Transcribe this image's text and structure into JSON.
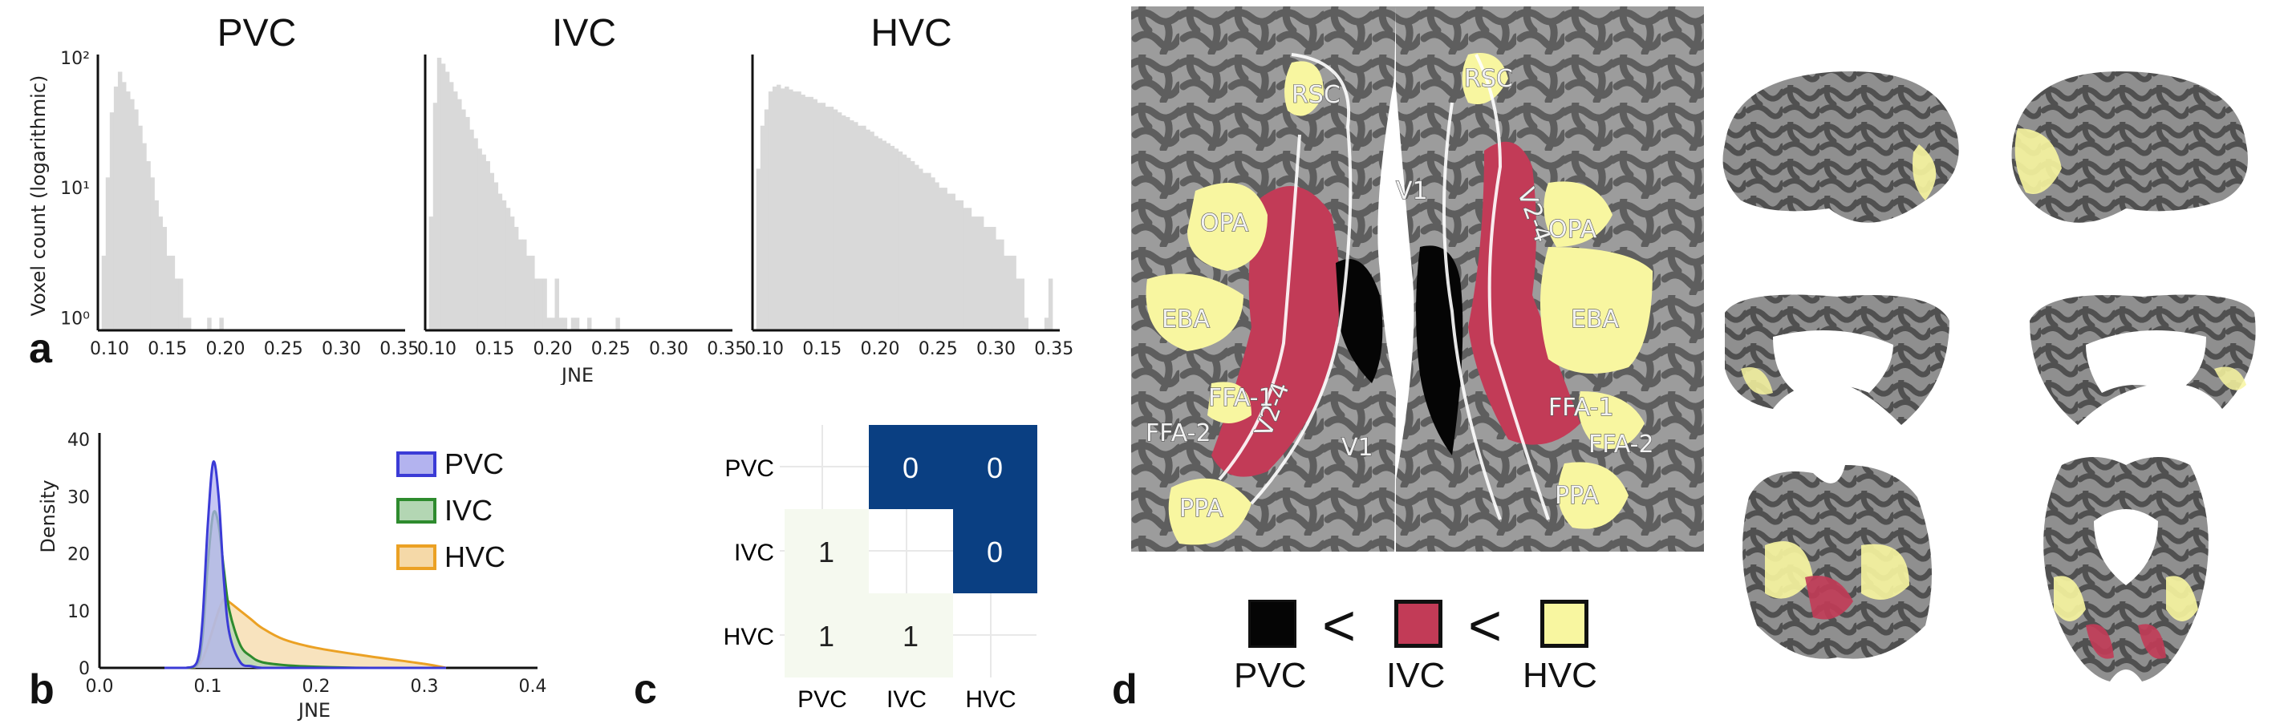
{
  "panel_letters": {
    "a": "a",
    "b": "b",
    "c": "c",
    "d": "d"
  },
  "panel_a": {
    "titles": [
      "PVC",
      "IVC",
      "HVC"
    ],
    "ylabel": "Voxel count (logarithmic)",
    "yticks": [
      "10²",
      "10¹",
      "10⁰"
    ],
    "xticks": [
      "0.10",
      "0.15",
      "0.20",
      "0.25",
      "0.30",
      "0.35"
    ],
    "xlabel": "JNE",
    "bar_color": "#d9d9d9"
  },
  "chart_data": [
    {
      "type": "bar",
      "title": "PVC",
      "xlabel": "JNE",
      "ylabel": "Voxel count (logarithmic)",
      "yscale": "log",
      "ylim": [
        0.8,
        100
      ],
      "xlim": [
        0.09,
        0.355
      ],
      "bin_width": 0.0035,
      "x": [
        0.095,
        0.0985,
        0.102,
        0.1055,
        0.109,
        0.1125,
        0.116,
        0.1195,
        0.123,
        0.1265,
        0.13,
        0.1335,
        0.137,
        0.1405,
        0.144,
        0.1475,
        0.151,
        0.1545,
        0.158,
        0.1615,
        0.165,
        0.1685,
        0.172,
        0.1755,
        0.179,
        0.1825,
        0.186,
        0.1895,
        0.193,
        0.1965,
        0.2
      ],
      "values": [
        3,
        12,
        38,
        60,
        78,
        65,
        55,
        48,
        40,
        30,
        22,
        16,
        12,
        8,
        6,
        5,
        3,
        3,
        2,
        2,
        1,
        1,
        0,
        0,
        0,
        0,
        1,
        0,
        0,
        1,
        0
      ]
    },
    {
      "type": "bar",
      "title": "IVC",
      "xlabel": "JNE",
      "yscale": "log",
      "ylim": [
        0.8,
        100
      ],
      "xlim": [
        0.09,
        0.355
      ],
      "bin_width": 0.0035,
      "x": [
        0.095,
        0.0985,
        0.102,
        0.1055,
        0.109,
        0.1125,
        0.116,
        0.1195,
        0.123,
        0.1265,
        0.13,
        0.1335,
        0.137,
        0.1405,
        0.144,
        0.1475,
        0.151,
        0.1545,
        0.158,
        0.1615,
        0.165,
        0.1685,
        0.172,
        0.1755,
        0.179,
        0.1825,
        0.186,
        0.1895,
        0.193,
        0.1965,
        0.2,
        0.2035,
        0.207,
        0.2105,
        0.214,
        0.2175,
        0.221,
        0.2245,
        0.228,
        0.2315,
        0.235,
        0.2385,
        0.242,
        0.2455,
        0.249,
        0.2525,
        0.256,
        0.2595
      ],
      "values": [
        6,
        45,
        100,
        90,
        78,
        65,
        55,
        48,
        40,
        35,
        28,
        24,
        20,
        18,
        16,
        13,
        11,
        9,
        8,
        7,
        6,
        5,
        4,
        4,
        3,
        3,
        2,
        2,
        2,
        1,
        1,
        2,
        1,
        1,
        0,
        1,
        1,
        0,
        0,
        1,
        0,
        0,
        0,
        0,
        0,
        0,
        1,
        0
      ]
    },
    {
      "type": "bar",
      "title": "HVC",
      "xlabel": "JNE",
      "yscale": "log",
      "ylim": [
        0.8,
        100
      ],
      "xlim": [
        0.09,
        0.355
      ],
      "bin_width": 0.0035,
      "x": [
        0.095,
        0.0985,
        0.102,
        0.1055,
        0.109,
        0.1125,
        0.116,
        0.1195,
        0.123,
        0.1265,
        0.13,
        0.1335,
        0.137,
        0.1405,
        0.144,
        0.1475,
        0.151,
        0.1545,
        0.158,
        0.1615,
        0.165,
        0.1685,
        0.172,
        0.1755,
        0.179,
        0.1825,
        0.186,
        0.1895,
        0.193,
        0.1965,
        0.2,
        0.2035,
        0.207,
        0.2105,
        0.214,
        0.2175,
        0.221,
        0.2245,
        0.228,
        0.2315,
        0.235,
        0.2385,
        0.242,
        0.2455,
        0.249,
        0.2525,
        0.256,
        0.2595,
        0.263,
        0.2665,
        0.27,
        0.2735,
        0.277,
        0.2805,
        0.284,
        0.2875,
        0.291,
        0.2945,
        0.298,
        0.3015,
        0.305,
        0.3085,
        0.312,
        0.3155,
        0.319,
        0.3225,
        0.326,
        0.3295,
        0.333,
        0.3365,
        0.34,
        0.3435,
        0.347
      ],
      "values": [
        14,
        30,
        40,
        55,
        60,
        62,
        58,
        60,
        57,
        55,
        55,
        52,
        50,
        50,
        48,
        45,
        45,
        42,
        42,
        40,
        38,
        36,
        35,
        33,
        32,
        30,
        30,
        28,
        27,
        25,
        24,
        23,
        22,
        21,
        20,
        19,
        18,
        17,
        16,
        15,
        14,
        13,
        13,
        12,
        11,
        10,
        10,
        9,
        9,
        8,
        8,
        7,
        7,
        6,
        6,
        6,
        5,
        5,
        5,
        4,
        4,
        3,
        3,
        3,
        2,
        2,
        1,
        0,
        0,
        0,
        0,
        1,
        2
      ]
    },
    {
      "type": "area",
      "title": "",
      "xlabel": "JNE",
      "ylabel": "Density",
      "xlim": [
        0.0,
        0.4
      ],
      "ylim": [
        0,
        40
      ],
      "xticks": [
        "0.0",
        "0.1",
        "0.2",
        "0.3",
        "0.4"
      ],
      "yticks": [
        "0",
        "10",
        "20",
        "30",
        "40"
      ],
      "x": [
        0.06,
        0.08,
        0.09,
        0.095,
        0.1,
        0.105,
        0.11,
        0.115,
        0.12,
        0.13,
        0.14,
        0.15,
        0.17,
        0.2,
        0.25,
        0.3,
        0.32
      ],
      "series": [
        {
          "name": "PVC",
          "values": [
            0,
            0,
            1,
            8,
            25,
            36,
            30,
            15,
            6,
            1,
            0.3,
            0,
            0,
            0,
            0,
            0,
            0
          ]
        },
        {
          "name": "IVC",
          "values": [
            0,
            0,
            0.5,
            5,
            18,
            27,
            25,
            17,
            10,
            4,
            2,
            1,
            0.5,
            0.2,
            0,
            0,
            0
          ]
        },
        {
          "name": "HVC",
          "values": [
            0,
            0,
            0.3,
            1.5,
            4,
            7,
            10,
            12,
            11.5,
            10,
            8.5,
            7,
            5,
            3.5,
            2,
            0.7,
            0
          ]
        }
      ],
      "legend": "top-right"
    },
    {
      "type": "heatmap",
      "title": "",
      "rows": [
        "PVC",
        "IVC",
        "HVC"
      ],
      "columns": [
        "PVC",
        "IVC",
        "HVC"
      ],
      "cells": [
        [
          null,
          0,
          0
        ],
        [
          1,
          null,
          0
        ],
        [
          1,
          1,
          null
        ]
      ]
    }
  ],
  "panel_b": {
    "ylabel": "Density",
    "xlabel": "JNE",
    "xticks": [
      "0.0",
      "0.1",
      "0.2",
      "0.3",
      "0.4"
    ],
    "yticks": [
      "0",
      "10",
      "20",
      "30",
      "40"
    ],
    "legend": [
      {
        "label": "PVC",
        "fill": "#b3b3ef",
        "edge": "#3b3bd6"
      },
      {
        "label": "IVC",
        "fill": "#b3d6b3",
        "edge": "#2e8b2e"
      },
      {
        "label": "HVC",
        "fill": "#f5d9a8",
        "edge": "#eba124"
      }
    ]
  },
  "panel_c": {
    "rows": [
      "PVC",
      "IVC",
      "HVC"
    ],
    "columns": [
      "PVC",
      "IVC",
      "HVC"
    ],
    "cells": [
      [
        null,
        "0",
        "0"
      ],
      [
        "1",
        null,
        "0"
      ],
      [
        "1",
        "1",
        null
      ]
    ],
    "color_zero": "#0a3f82",
    "color_one": "#f5f9ef"
  },
  "panel_d": {
    "labels_left": [
      "RSC",
      "OPA",
      "EBA",
      "FFA-1",
      "FFA-2",
      "V2-4",
      "V1",
      "PPA"
    ],
    "labels_right": [
      "RSC",
      "V1",
      "V2-4",
      "OPA",
      "EBA",
      "FFA-1",
      "FFA-2",
      "PPA"
    ],
    "legend": [
      {
        "label": "PVC",
        "color": "#050505"
      },
      {
        "label": "IVC",
        "color": "#c23b57"
      },
      {
        "label": "HVC",
        "color": "#f8f6a0"
      }
    ],
    "less_than": "<",
    "colors": {
      "dark": "#5e5e5e",
      "light": "#9c9c9c",
      "ivc": "#c23b57",
      "hvc": "#f8f6a0",
      "pvc": "#050505"
    }
  }
}
